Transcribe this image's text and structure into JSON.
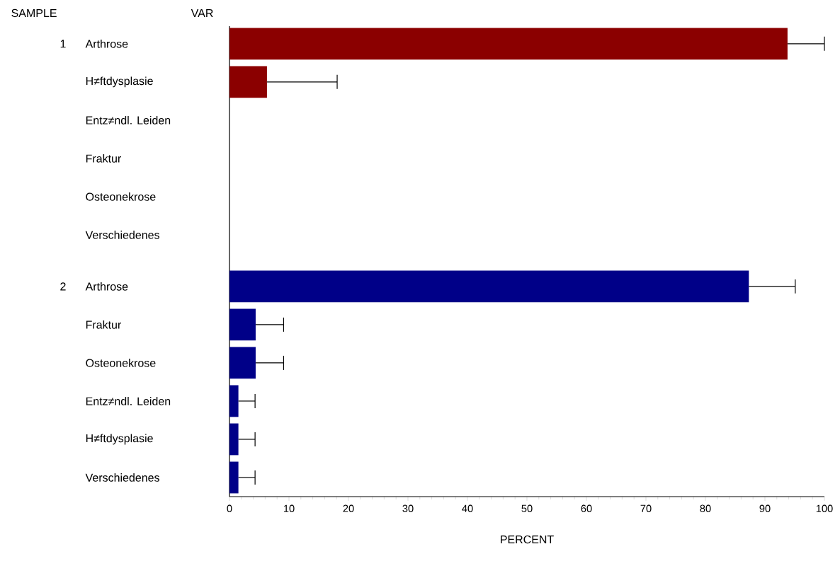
{
  "chart_data": {
    "type": "bar",
    "orientation": "horizontal",
    "xlabel": "PERCENT",
    "ylabel": "VAR",
    "categories": [
      "Arthrose",
      "H≠ftdysplasie",
      "Entz≠ndl. Leiden",
      "Fraktur",
      "Osteonekrose",
      "Verschiedenes",
      "Arthrose",
      "Fraktur",
      "Osteonekrose",
      "Entz≠ndl. Leiden",
      "H≠ftdysplasie",
      "Verschiedenes"
    ],
    "values": [
      93.8,
      6.3,
      0,
      0,
      0,
      0,
      87.3,
      4.4,
      4.4,
      1.5,
      1.5,
      1.5
    ],
    "colors": [
      "#8b0000",
      "#8b0000",
      "#8b0000",
      "#8b0000",
      "#8b0000",
      "#8b0000",
      "#000088",
      "#000088",
      "#000088",
      "#000088",
      "#000088",
      "#000088"
    ],
    "errors": [
      [
        93.8,
        100
      ],
      [
        6.3,
        18.1
      ],
      null,
      null,
      null,
      null,
      [
        87.3,
        95.1
      ],
      [
        4.4,
        9.1
      ],
      [
        4.4,
        9.1
      ],
      [
        1.5,
        4.3
      ],
      [
        1.5,
        4.3
      ],
      [
        1.5,
        4.3
      ]
    ],
    "xlim": [
      0,
      100
    ],
    "xticks": [
      0,
      10,
      20,
      30,
      40,
      50,
      60,
      70,
      80,
      90,
      100
    ],
    "annotations": [
      "SAMPLE",
      "1",
      "2"
    ]
  }
}
